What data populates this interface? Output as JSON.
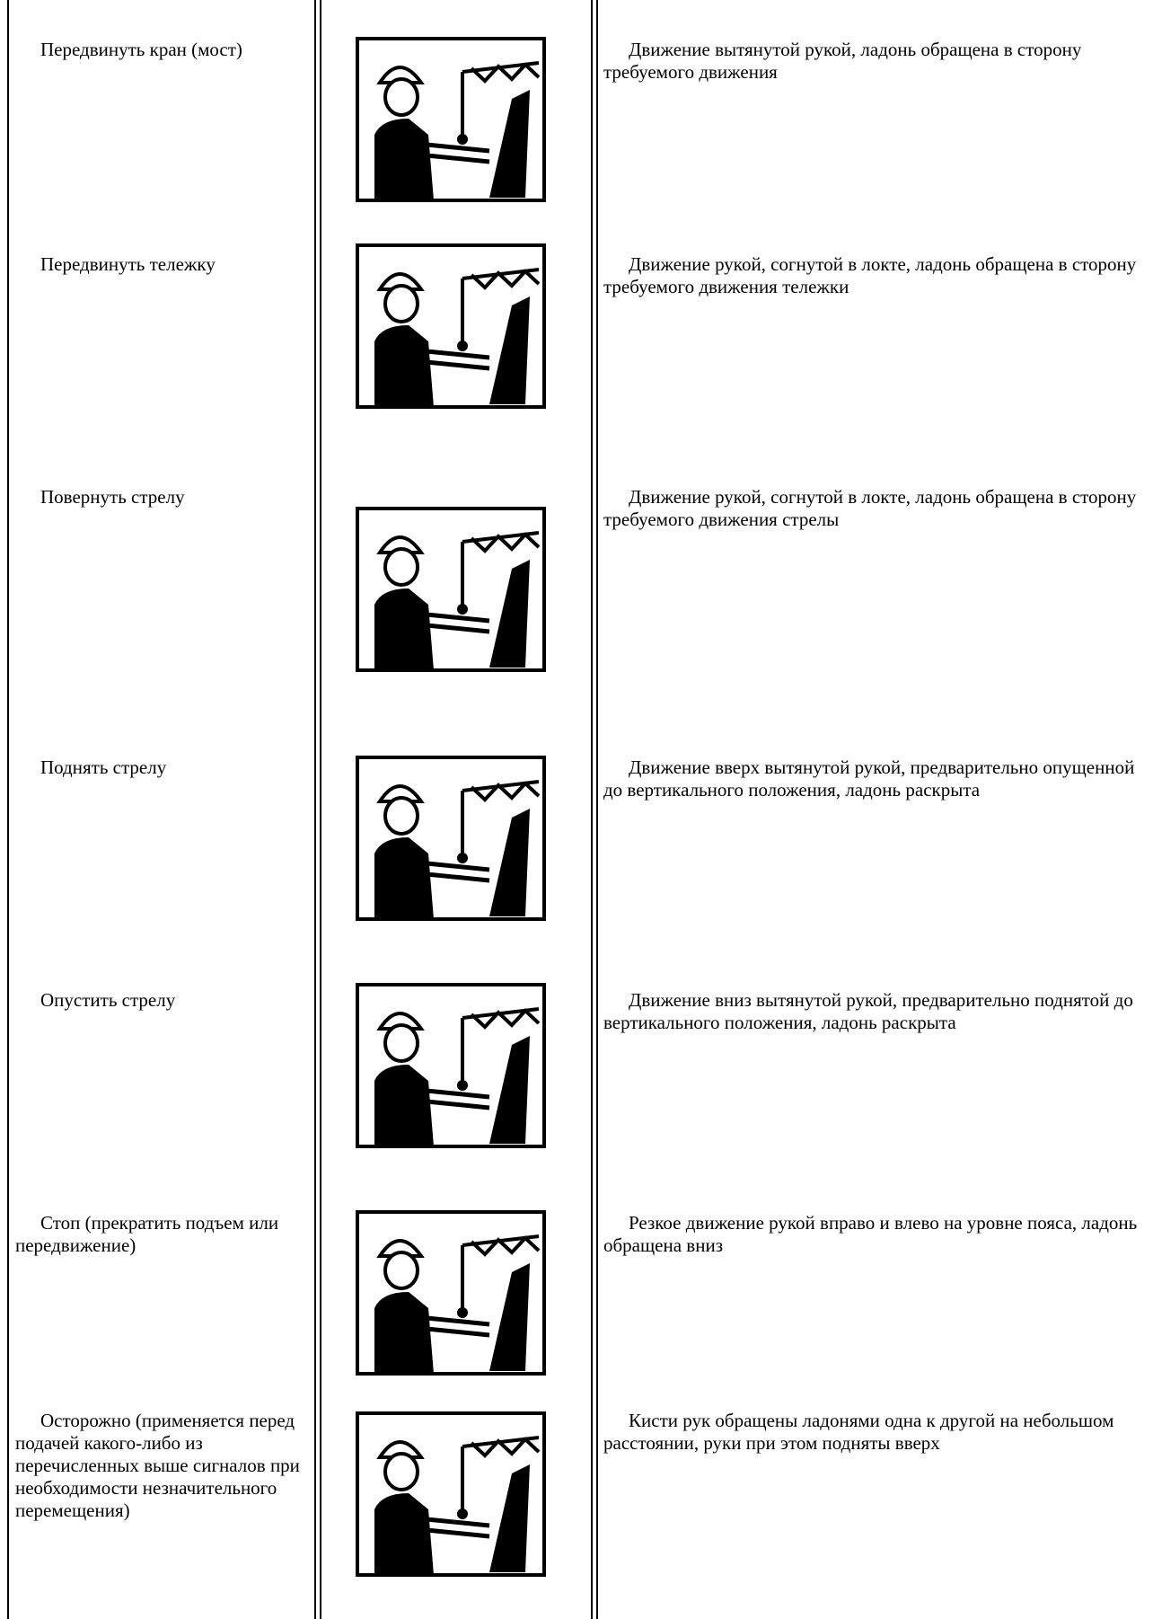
{
  "rows": [
    {
      "signal": "Передвинуть кран (мост)",
      "description": "Движение вытянутой рукой, ладонь обращена в сторону требуемого движения"
    },
    {
      "signal": "Передвинуть тележку",
      "description": "Движение рукой, согнутой в локте, ладонь обращена в сторону требуемого движения тележки"
    },
    {
      "signal": "Повернуть стрелу",
      "description": "Движение рукой, согнутой в локте, ладонь обращена в сторону требуемого движения стрелы"
    },
    {
      "signal": "Поднять стрелу",
      "description": "Движение вверх вытянутой рукой, предварительно опущенной до вертикального положения, ладонь раскрыта"
    },
    {
      "signal": "Опустить стрелу",
      "description": "Движение вниз вытянутой рукой, предварительно поднятой до вертикального положения, ладонь раскрыта"
    },
    {
      "signal": "Стоп (прекратить подъем или передвижение)",
      "description": "Резкое движение рукой вправо и влево на уровне пояса, ладонь обращена вниз"
    },
    {
      "signal": "Осторожно (применяется перед подачей какого-либо из перечисленных выше сигналов при необходимости незначительного перемещения)",
      "description": "Кисти рук обращены ладонями одна к другой на небольшом расстоянии, руки при этом подняты вверх"
    }
  ]
}
